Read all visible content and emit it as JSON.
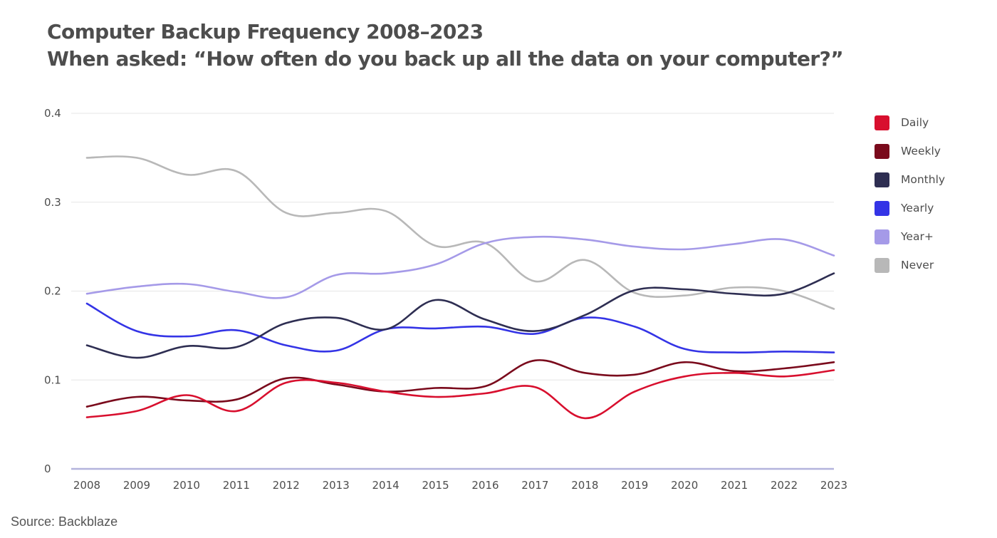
{
  "title": {
    "line1": "Computer Backup Frequency 2008–2023",
    "line2": "When asked: “How often do you back up all the data on your computer?”"
  },
  "source": "Source: Backblaze",
  "chart_data": {
    "type": "line",
    "x": [
      2008,
      2009,
      2010,
      2011,
      2012,
      2013,
      2014,
      2015,
      2016,
      2017,
      2018,
      2019,
      2020,
      2021,
      2022,
      2023
    ],
    "ylim": [
      0,
      0.4
    ],
    "yticks": [
      0,
      0.1,
      0.2,
      0.3,
      0.4
    ],
    "ytick_labels": [
      "0",
      "0.1",
      "0.2",
      "0.3",
      "0.4"
    ],
    "grid": true,
    "legend_position": "right",
    "series": [
      {
        "name": "Daily",
        "color": "#d80f2e",
        "values": [
          0.058,
          0.065,
          0.083,
          0.065,
          0.097,
          0.097,
          0.087,
          0.081,
          0.085,
          0.092,
          0.057,
          0.087,
          0.104,
          0.108,
          0.104,
          0.111
        ]
      },
      {
        "name": "Weekly",
        "color": "#7a0a1c",
        "values": [
          0.07,
          0.081,
          0.077,
          0.078,
          0.102,
          0.095,
          0.087,
          0.091,
          0.093,
          0.122,
          0.108,
          0.106,
          0.12,
          0.11,
          0.113,
          0.12
        ]
      },
      {
        "name": "Monthly",
        "color": "#2e2e52",
        "values": [
          0.139,
          0.125,
          0.138,
          0.137,
          0.164,
          0.17,
          0.157,
          0.19,
          0.168,
          0.155,
          0.173,
          0.201,
          0.202,
          0.197,
          0.197,
          0.22
        ]
      },
      {
        "name": "Yearly",
        "color": "#3434e6",
        "values": [
          0.186,
          0.155,
          0.149,
          0.156,
          0.139,
          0.133,
          0.157,
          0.158,
          0.16,
          0.152,
          0.17,
          0.16,
          0.135,
          0.131,
          0.132,
          0.131
        ]
      },
      {
        "name": "Year+",
        "color": "#a59ae8",
        "values": [
          0.197,
          0.205,
          0.208,
          0.199,
          0.193,
          0.218,
          0.22,
          0.23,
          0.254,
          0.261,
          0.258,
          0.25,
          0.247,
          0.253,
          0.258,
          0.24
        ]
      },
      {
        "name": "Never",
        "color": "#b8b8b8",
        "values": [
          0.35,
          0.35,
          0.331,
          0.335,
          0.288,
          0.288,
          0.29,
          0.251,
          0.254,
          0.211,
          0.235,
          0.198,
          0.195,
          0.204,
          0.2,
          0.18
        ]
      }
    ]
  }
}
